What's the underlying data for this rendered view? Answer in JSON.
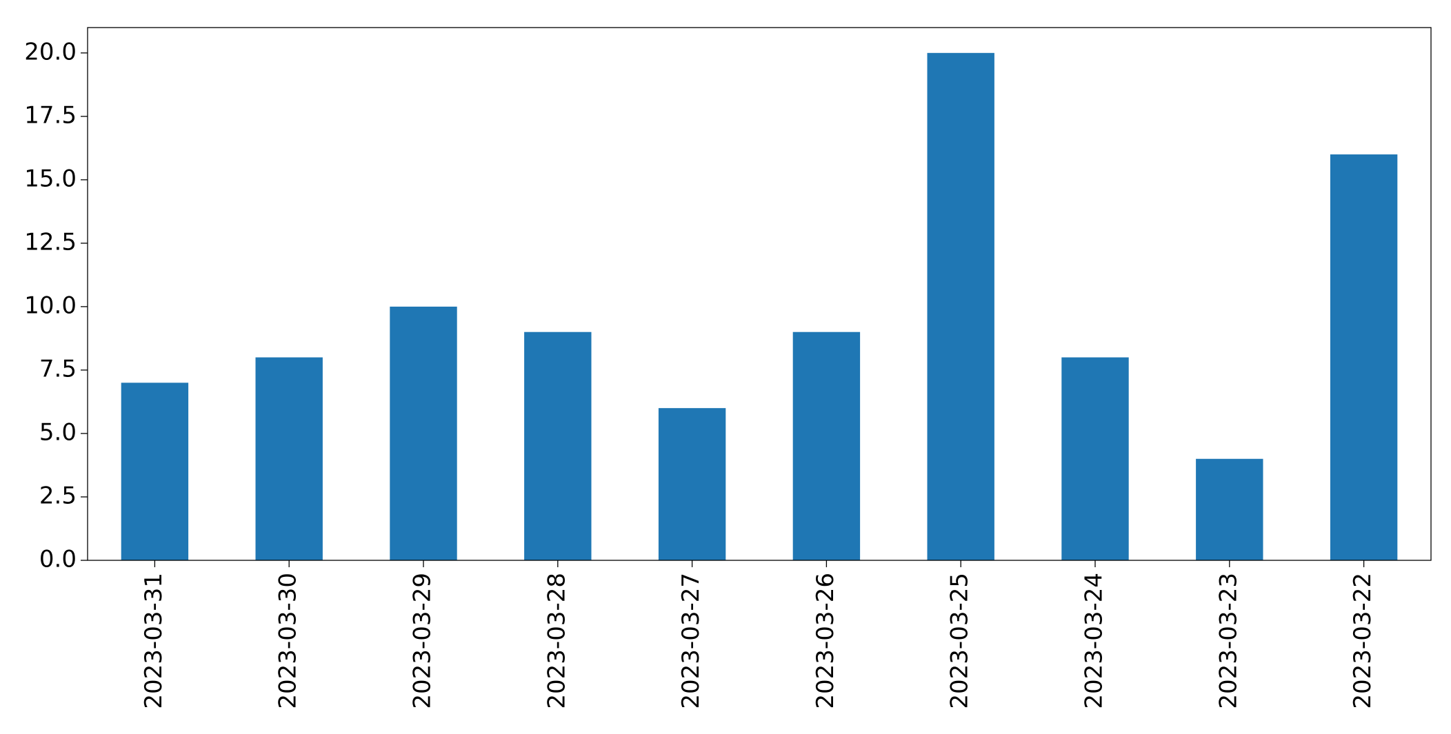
{
  "chart_data": {
    "type": "bar",
    "categories": [
      "2023-03-31",
      "2023-03-30",
      "2023-03-29",
      "2023-03-28",
      "2023-03-27",
      "2023-03-26",
      "2023-03-25",
      "2023-03-24",
      "2023-03-23",
      "2023-03-22"
    ],
    "values": [
      7,
      8,
      10,
      9,
      6,
      9,
      20,
      8,
      4,
      16
    ],
    "color": "#1f77b4",
    "ylim": [
      0,
      21
    ],
    "yticks": [
      {
        "value": 0,
        "label": "0.0"
      },
      2.5,
      {
        "value": 5,
        "label": "5.0"
      },
      7.5,
      {
        "value": 10,
        "label": "10.0"
      },
      12.5,
      {
        "value": 15,
        "label": "15.0"
      },
      17.5,
      {
        "value": 20,
        "label": "20.0"
      }
    ],
    "grid": false
  }
}
